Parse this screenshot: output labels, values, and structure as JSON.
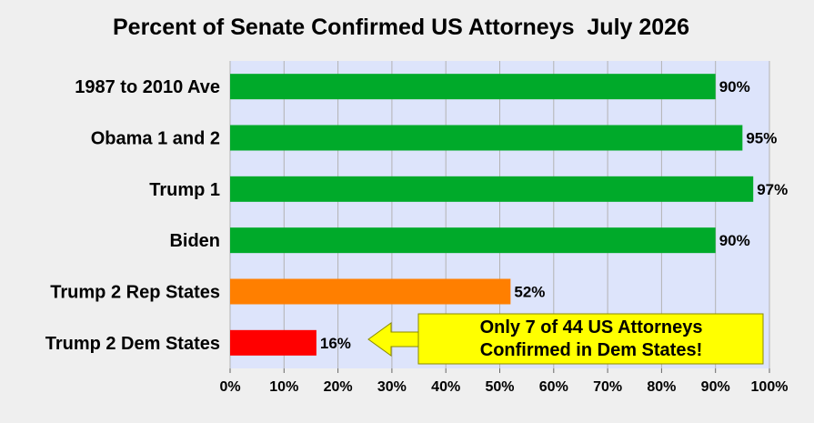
{
  "chart_data": {
    "type": "bar",
    "orientation": "horizontal",
    "title": "Percent of Senate Confirmed US Attorneys  July 2026",
    "xlabel": "",
    "ylabel": "",
    "xlim": [
      0,
      100
    ],
    "x_tick_step": 10,
    "value_suffix": "%",
    "grid": true,
    "categories": [
      "1987 to 2010 Ave",
      "Obama 1 and 2",
      "Trump 1",
      "Biden",
      "Trump 2 Rep States",
      "Trump 2 Dem States"
    ],
    "values": [
      90,
      95,
      97,
      90,
      52,
      16
    ],
    "bar_colors": [
      "#00aa2a",
      "#00aa2a",
      "#00aa2a",
      "#00aa2a",
      "#ff7f00",
      "#ff0000"
    ],
    "annotations": [
      {
        "lines": [
          "Only 7 of 44 US Attorneys",
          "Confirmed in Dem States!"
        ],
        "points_to": "Trump 2 Dem States",
        "box_color": "#ffff00",
        "arrow_color": "#ffff00"
      }
    ]
  },
  "colors": {
    "plot_background": "#dde4fb",
    "page_background": "#efefef",
    "gridline": "#b3b3b3"
  }
}
